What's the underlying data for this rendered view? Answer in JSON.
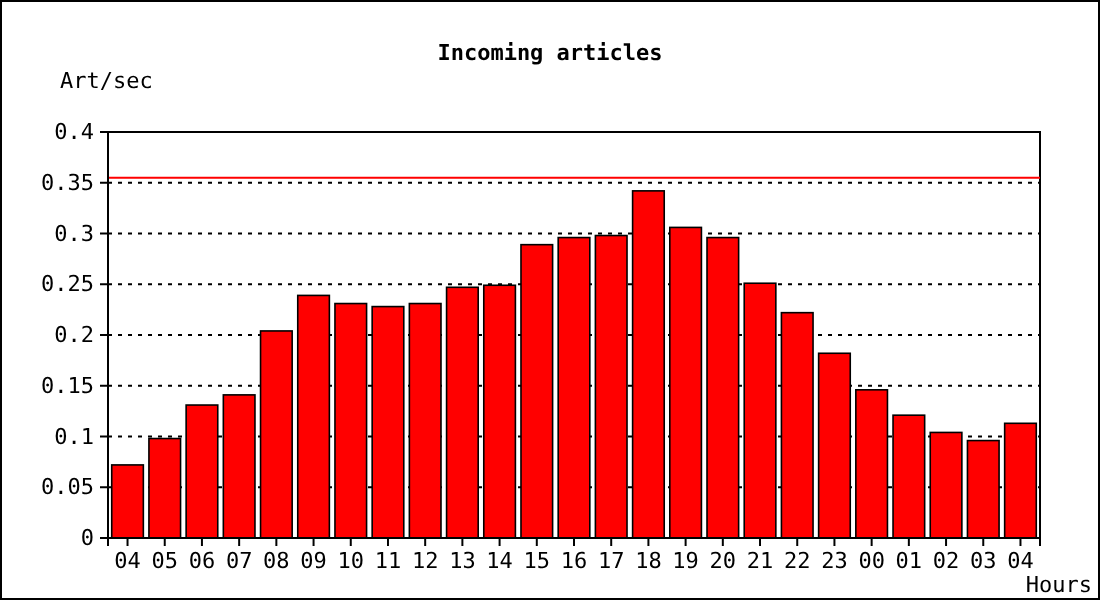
{
  "chart_data": {
    "type": "bar",
    "title": "Incoming articles",
    "ylabel": "Art/sec",
    "xlabel": "Hours",
    "categories": [
      "04",
      "05",
      "06",
      "07",
      "08",
      "09",
      "10",
      "11",
      "12",
      "13",
      "14",
      "15",
      "16",
      "17",
      "18",
      "19",
      "20",
      "21",
      "22",
      "23",
      "00",
      "01",
      "02",
      "03",
      "04"
    ],
    "values": [
      0.072,
      0.098,
      0.131,
      0.141,
      0.204,
      0.239,
      0.231,
      0.228,
      0.231,
      0.247,
      0.249,
      0.289,
      0.296,
      0.298,
      0.342,
      0.306,
      0.296,
      0.251,
      0.222,
      0.182,
      0.146,
      0.121,
      0.104,
      0.096,
      0.113
    ],
    "color": "#ff0000",
    "ylim": [
      0,
      0.4
    ],
    "yticks": [
      0,
      0.05,
      0.1,
      0.15,
      0.2,
      0.25,
      0.3,
      0.35,
      0.4
    ],
    "grid": "y",
    "ref_lines": [
      {
        "axis": "y",
        "value": 0.355,
        "color": "#ff0000"
      }
    ]
  }
}
